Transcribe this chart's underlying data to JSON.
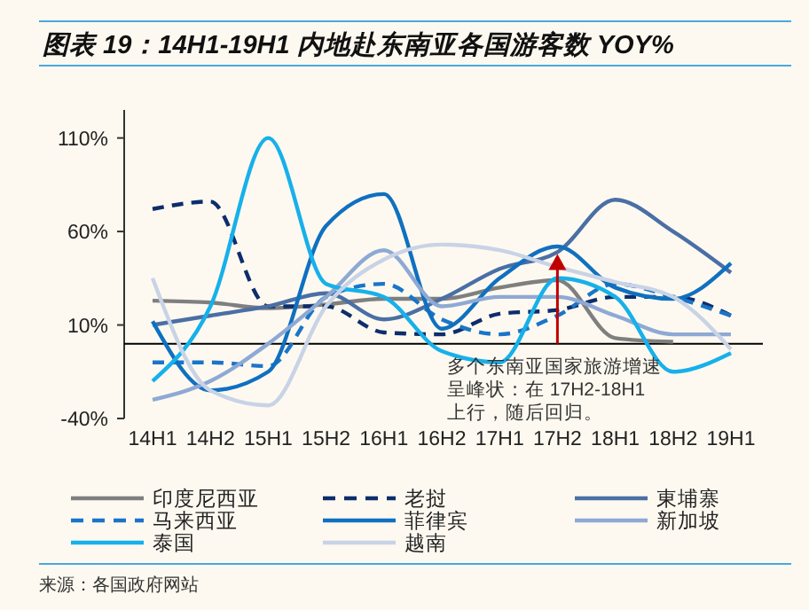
{
  "chart_data": {
    "type": "line",
    "title": "图表 19：14H1-19H1 内地赴东南亚各国游客数 YOY%",
    "categories": [
      "14H1",
      "14H2",
      "15H1",
      "15H2",
      "16H1",
      "16H2",
      "17H1",
      "17H2",
      "18H1",
      "18H2",
      "19H1"
    ],
    "ylim": [
      -40,
      125
    ],
    "yticks": [
      {
        "value": -40,
        "label": "-40%"
      },
      {
        "value": 10,
        "label": "10%"
      },
      {
        "value": 60,
        "label": "60%"
      },
      {
        "value": 110,
        "label": "110%"
      }
    ],
    "grid": false,
    "legend": "bottom",
    "series": [
      {
        "name": "印度尼西亚",
        "color": "#7f7f7f",
        "line_style": "solid",
        "values": [
          23,
          22,
          19,
          21,
          24,
          24,
          30,
          34,
          3,
          1,
          null
        ]
      },
      {
        "name": "老挝",
        "color": "#0d2d6c",
        "line_style": "dashed",
        "values": [
          72,
          76,
          20,
          20,
          6,
          5,
          16,
          18,
          25,
          25,
          15
        ]
      },
      {
        "name": "東埔寨",
        "color": "#4a6fa5",
        "line_style": "solid",
        "values": [
          10,
          15,
          20,
          27,
          13,
          24,
          40,
          49,
          77,
          60,
          38
        ]
      },
      {
        "name": "马来西亚",
        "color": "#1a75c8",
        "line_style": "dashed",
        "values": [
          -10,
          -10,
          -12,
          25,
          32,
          13,
          5,
          15,
          32,
          25,
          15
        ]
      },
      {
        "name": "菲律宾",
        "color": "#1070c0",
        "line_style": "solid",
        "values": [
          12,
          -25,
          -15,
          63,
          80,
          8,
          35,
          52,
          30,
          24,
          43
        ]
      },
      {
        "name": "新加坡",
        "color": "#8ea9d4",
        "line_style": "solid",
        "values": [
          -30,
          -20,
          0,
          25,
          50,
          20,
          25,
          25,
          15,
          5,
          5
        ]
      },
      {
        "name": "泰国",
        "color": "#17b0ea",
        "line_style": "solid",
        "values": [
          -20,
          20,
          110,
          32,
          25,
          -4,
          -10,
          35,
          25,
          -15,
          -5
        ]
      },
      {
        "name": "越南",
        "color": "#c9d3e6",
        "line_style": "solid",
        "values": [
          35,
          -25,
          -33,
          20,
          45,
          53,
          50,
          41,
          33,
          25,
          -3
        ]
      }
    ],
    "ref_lines": [
      {
        "axis": "y",
        "value": 0,
        "color": "#000000"
      }
    ],
    "annotations": [
      {
        "text": "多个东南亚国家旅游增速呈峰状：在 17H2-18H1上行，随后回归。",
        "x": "17H2",
        "y": 48
      },
      "来源：各国政府网站"
    ]
  }
}
